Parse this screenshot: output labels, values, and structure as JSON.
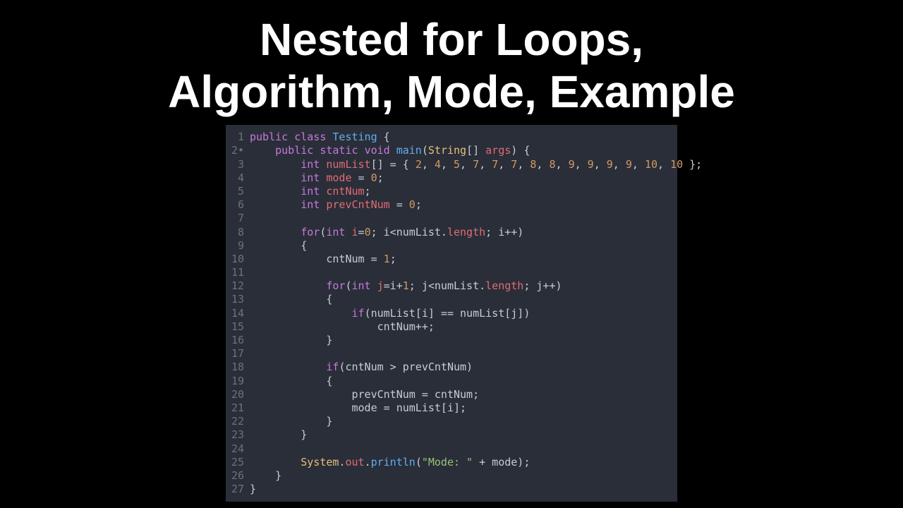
{
  "title_line1": "Nested for Loops,",
  "title_line2": "Algorithm, Mode, Example",
  "editor": {
    "background": "#2a2e38",
    "gutter_color": "#6a737d",
    "text_color": "#c8ccd4",
    "colors": {
      "keyword": "#c678dd",
      "type": "#e5c07b",
      "class": "#61afef",
      "function": "#61afef",
      "variable": "#e06c75",
      "number": "#d19a66",
      "string": "#98c379",
      "property": "#e06c75"
    },
    "lines": [
      {
        "n": "1",
        "bp": "",
        "tokens": [
          [
            "kw",
            "public"
          ],
          [
            "pl",
            " "
          ],
          [
            "kw",
            "class"
          ],
          [
            "pl",
            " "
          ],
          [
            "cls",
            "Testing"
          ],
          [
            "pl",
            " {"
          ]
        ]
      },
      {
        "n": "2",
        "bp": "•",
        "tokens": [
          [
            "pl",
            "    "
          ],
          [
            "kw",
            "public"
          ],
          [
            "pl",
            " "
          ],
          [
            "kw",
            "static"
          ],
          [
            "pl",
            " "
          ],
          [
            "kw",
            "void"
          ],
          [
            "pl",
            " "
          ],
          [
            "fn",
            "main"
          ],
          [
            "pl",
            "("
          ],
          [
            "type",
            "String"
          ],
          [
            "pl",
            "[] "
          ],
          [
            "var",
            "args"
          ],
          [
            "pl",
            ") {"
          ]
        ]
      },
      {
        "n": "3",
        "bp": "",
        "tokens": [
          [
            "pl",
            "        "
          ],
          [
            "kw",
            "int"
          ],
          [
            "pl",
            " "
          ],
          [
            "var",
            "numList"
          ],
          [
            "pl",
            "[] = { "
          ],
          [
            "num",
            "2"
          ],
          [
            "pl",
            ", "
          ],
          [
            "num",
            "4"
          ],
          [
            "pl",
            ", "
          ],
          [
            "num",
            "5"
          ],
          [
            "pl",
            ", "
          ],
          [
            "num",
            "7"
          ],
          [
            "pl",
            ", "
          ],
          [
            "num",
            "7"
          ],
          [
            "pl",
            ", "
          ],
          [
            "num",
            "7"
          ],
          [
            "pl",
            ", "
          ],
          [
            "num",
            "8"
          ],
          [
            "pl",
            ", "
          ],
          [
            "num",
            "8"
          ],
          [
            "pl",
            ", "
          ],
          [
            "num",
            "9"
          ],
          [
            "pl",
            ", "
          ],
          [
            "num",
            "9"
          ],
          [
            "pl",
            ", "
          ],
          [
            "num",
            "9"
          ],
          [
            "pl",
            ", "
          ],
          [
            "num",
            "9"
          ],
          [
            "pl",
            ", "
          ],
          [
            "num",
            "10"
          ],
          [
            "pl",
            ", "
          ],
          [
            "num",
            "10"
          ],
          [
            "pl",
            " };"
          ]
        ]
      },
      {
        "n": "4",
        "bp": "",
        "tokens": [
          [
            "pl",
            "        "
          ],
          [
            "kw",
            "int"
          ],
          [
            "pl",
            " "
          ],
          [
            "var",
            "mode"
          ],
          [
            "pl",
            " = "
          ],
          [
            "num",
            "0"
          ],
          [
            "pl",
            ";"
          ]
        ]
      },
      {
        "n": "5",
        "bp": "",
        "tokens": [
          [
            "pl",
            "        "
          ],
          [
            "kw",
            "int"
          ],
          [
            "pl",
            " "
          ],
          [
            "var",
            "cntNum"
          ],
          [
            "pl",
            ";"
          ]
        ]
      },
      {
        "n": "6",
        "bp": "",
        "tokens": [
          [
            "pl",
            "        "
          ],
          [
            "kw",
            "int"
          ],
          [
            "pl",
            " "
          ],
          [
            "var",
            "prevCntNum"
          ],
          [
            "pl",
            " = "
          ],
          [
            "num",
            "0"
          ],
          [
            "pl",
            ";"
          ]
        ]
      },
      {
        "n": "7",
        "bp": "",
        "tokens": [
          [
            "pl",
            ""
          ]
        ]
      },
      {
        "n": "8",
        "bp": "",
        "tokens": [
          [
            "pl",
            "        "
          ],
          [
            "kw",
            "for"
          ],
          [
            "pl",
            "("
          ],
          [
            "kw",
            "int"
          ],
          [
            "pl",
            " "
          ],
          [
            "var",
            "i"
          ],
          [
            "pl",
            "="
          ],
          [
            "num",
            "0"
          ],
          [
            "pl",
            "; i<numList."
          ],
          [
            "prop",
            "length"
          ],
          [
            "pl",
            "; i++)"
          ]
        ]
      },
      {
        "n": "9",
        "bp": "",
        "tokens": [
          [
            "pl",
            "        {"
          ]
        ]
      },
      {
        "n": "10",
        "bp": "",
        "tokens": [
          [
            "pl",
            "            cntNum = "
          ],
          [
            "num",
            "1"
          ],
          [
            "pl",
            ";"
          ]
        ]
      },
      {
        "n": "11",
        "bp": "",
        "tokens": [
          [
            "pl",
            ""
          ]
        ]
      },
      {
        "n": "12",
        "bp": "",
        "tokens": [
          [
            "pl",
            "            "
          ],
          [
            "kw",
            "for"
          ],
          [
            "pl",
            "("
          ],
          [
            "kw",
            "int"
          ],
          [
            "pl",
            " "
          ],
          [
            "var",
            "j"
          ],
          [
            "pl",
            "=i+"
          ],
          [
            "num",
            "1"
          ],
          [
            "pl",
            "; j<numList."
          ],
          [
            "prop",
            "length"
          ],
          [
            "pl",
            "; j++)"
          ]
        ]
      },
      {
        "n": "13",
        "bp": "",
        "tokens": [
          [
            "pl",
            "            {"
          ]
        ]
      },
      {
        "n": "14",
        "bp": "",
        "tokens": [
          [
            "pl",
            "                "
          ],
          [
            "kw",
            "if"
          ],
          [
            "pl",
            "(numList[i] == numList[j])"
          ]
        ]
      },
      {
        "n": "15",
        "bp": "",
        "tokens": [
          [
            "pl",
            "                    cntNum++;"
          ]
        ]
      },
      {
        "n": "16",
        "bp": "",
        "tokens": [
          [
            "pl",
            "            }"
          ]
        ]
      },
      {
        "n": "17",
        "bp": "",
        "tokens": [
          [
            "pl",
            ""
          ]
        ]
      },
      {
        "n": "18",
        "bp": "",
        "tokens": [
          [
            "pl",
            "            "
          ],
          [
            "kw",
            "if"
          ],
          [
            "pl",
            "(cntNum > prevCntNum)"
          ]
        ]
      },
      {
        "n": "19",
        "bp": "",
        "tokens": [
          [
            "pl",
            "            {"
          ]
        ]
      },
      {
        "n": "20",
        "bp": "",
        "tokens": [
          [
            "pl",
            "                prevCntNum = cntNum;"
          ]
        ]
      },
      {
        "n": "21",
        "bp": "",
        "tokens": [
          [
            "pl",
            "                mode = numList[i];"
          ]
        ]
      },
      {
        "n": "22",
        "bp": "",
        "tokens": [
          [
            "pl",
            "            }"
          ]
        ]
      },
      {
        "n": "23",
        "bp": "",
        "tokens": [
          [
            "pl",
            "        }"
          ]
        ]
      },
      {
        "n": "24",
        "bp": "",
        "tokens": [
          [
            "pl",
            ""
          ]
        ]
      },
      {
        "n": "25",
        "bp": "",
        "tokens": [
          [
            "pl",
            "        "
          ],
          [
            "obj",
            "System"
          ],
          [
            "pl",
            "."
          ],
          [
            "out",
            "out"
          ],
          [
            "pl",
            "."
          ],
          [
            "fn",
            "println"
          ],
          [
            "pl",
            "("
          ],
          [
            "str",
            "\"Mode: \""
          ],
          [
            "pl",
            " + mode);"
          ]
        ]
      },
      {
        "n": "26",
        "bp": "",
        "tokens": [
          [
            "pl",
            "    }"
          ]
        ]
      },
      {
        "n": "27",
        "bp": "",
        "tokens": [
          [
            "pl",
            "}"
          ]
        ]
      }
    ]
  }
}
